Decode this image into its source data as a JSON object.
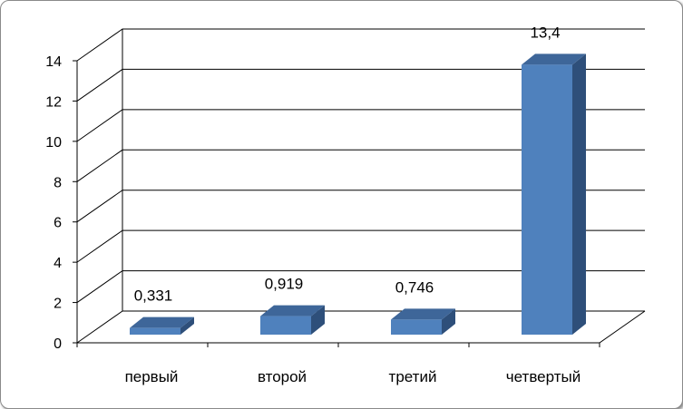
{
  "chart_data": {
    "type": "bar",
    "style": "3d-column",
    "categories": [
      "первый",
      "второй",
      "третий",
      "четвертый"
    ],
    "values": [
      0.331,
      0.919,
      0.746,
      13.4
    ],
    "data_labels": [
      "0,331",
      "0,919",
      "0,746",
      "13,4"
    ],
    "y_ticks": [
      "0",
      "2",
      "4",
      "6",
      "8",
      "10",
      "12",
      "14"
    ],
    "ylim": [
      0,
      14
    ],
    "grid": true,
    "legend": "none",
    "colors": {
      "bar_front": "#4f81bd",
      "bar_top": "#3e6699",
      "bar_side": "#2e4f7a",
      "grid": "#000000"
    }
  }
}
